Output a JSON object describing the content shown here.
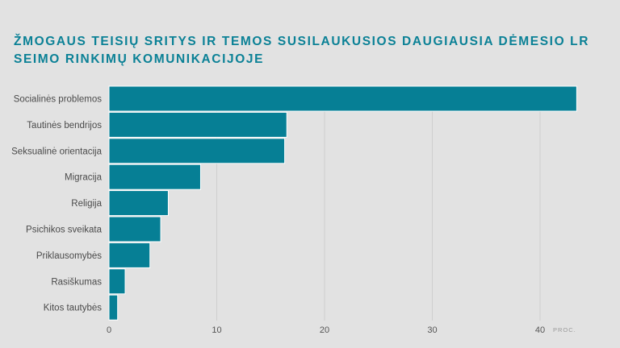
{
  "page": {
    "background": "#e2e2e2"
  },
  "chart_data": {
    "type": "bar",
    "orientation": "horizontal",
    "title": "ŽMOGAUS TEISIŲ SRITYS IR TEMOS SUSILAUKUSIOS DAUGIAUSIA DĖMESIO LR SEIMO RINKIMŲ KOMUNIKACIJOJE",
    "categories": [
      "Socialinės problemos",
      "Tautinės bendrijos",
      "Seksualinė orientacija",
      "Migracija",
      "Religija",
      "Psichikos sveikata",
      "Priklausomybės",
      "Rasiškumas",
      "Kitos tautybės"
    ],
    "values": [
      43.4,
      16.5,
      16.3,
      8.5,
      5.5,
      4.8,
      3.8,
      1.5,
      0.8
    ],
    "xlim": [
      0,
      45
    ],
    "xticks": [
      0,
      10,
      20,
      30,
      40
    ],
    "xunit": "PROC.",
    "grid": "vertical",
    "bar_color": "#067f95",
    "title_color": "#0b8196"
  }
}
